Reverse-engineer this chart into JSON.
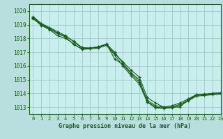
{
  "title": "Graphe pression niveau de la mer (hPa)",
  "bg_color": "#b8dede",
  "plot_bg_color": "#c8eeee",
  "grid_color": "#a0c8c8",
  "line_color": "#1a5c1a",
  "xlim": [
    -0.5,
    23
  ],
  "ylim": [
    1012.5,
    1020.5
  ],
  "yticks": [
    1013,
    1014,
    1015,
    1016,
    1017,
    1018,
    1019,
    1020
  ],
  "xticks": [
    0,
    1,
    2,
    3,
    4,
    5,
    6,
    7,
    8,
    9,
    10,
    11,
    12,
    13,
    14,
    15,
    16,
    17,
    18,
    19,
    20,
    21,
    22,
    23
  ],
  "series": [
    [
      1019.6,
      1019.1,
      1018.8,
      1018.5,
      1018.2,
      1017.75,
      1017.3,
      1017.3,
      1017.4,
      1017.55,
      1016.9,
      1016.3,
      1015.7,
      1015.2,
      1013.7,
      1013.3,
      1013.0,
      1013.1,
      1013.3,
      1013.6,
      1013.9,
      1013.9,
      1014.0,
      1014.05
    ],
    [
      1019.55,
      1019.05,
      1018.75,
      1018.4,
      1018.15,
      1017.8,
      1017.35,
      1017.3,
      1017.35,
      1017.6,
      1016.5,
      1016.1,
      1015.45,
      1014.85,
      1013.5,
      1013.1,
      1013.0,
      1013.0,
      1013.0,
      1013.55,
      1013.9,
      1013.95,
      1014.0,
      1014.05
    ],
    [
      1019.5,
      1019.0,
      1018.7,
      1018.35,
      1018.1,
      1017.55,
      1017.25,
      1017.3,
      1017.4,
      1017.6,
      1017.0,
      1016.2,
      1015.5,
      1015.0,
      1013.4,
      1013.0,
      1012.95,
      1013.0,
      1013.2,
      1013.5,
      1013.85,
      1013.9,
      1013.95,
      1014.0
    ],
    [
      1019.45,
      1018.95,
      1018.65,
      1018.2,
      1018.0,
      1017.6,
      1017.2,
      1017.25,
      1017.3,
      1017.5,
      1016.8,
      1016.0,
      1015.3,
      1014.7,
      1013.35,
      1012.95,
      1012.9,
      1012.95,
      1013.1,
      1013.45,
      1013.8,
      1013.85,
      1013.9,
      1013.95
    ]
  ]
}
